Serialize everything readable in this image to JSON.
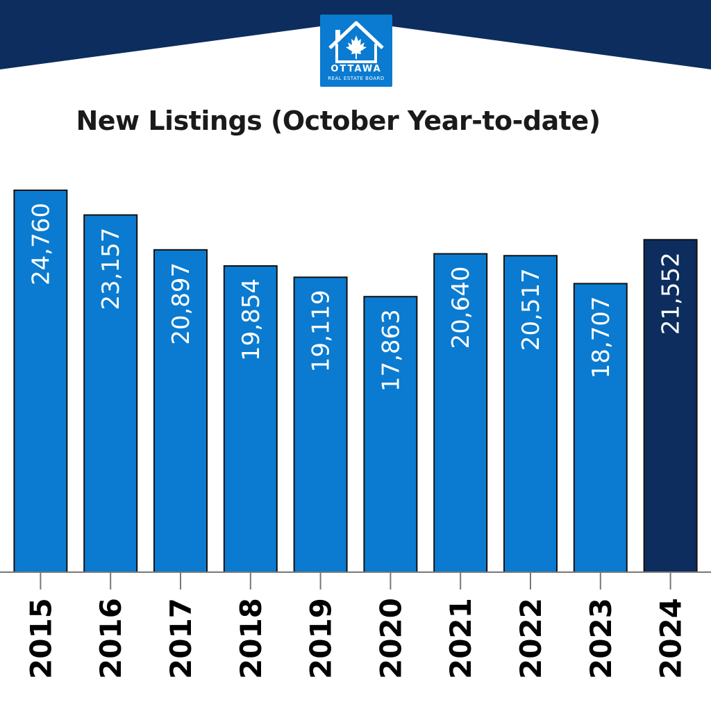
{
  "logo": {
    "name": "OTTAWA",
    "subtitle": "REAL ESTATE BOARD"
  },
  "colors": {
    "banner": "#0c2d5e",
    "bar": "#0a7bd0",
    "bar_highlight": "#0c2d5e",
    "bar_outline": "#111111",
    "value_label": "#ffffff",
    "axis": "#777777",
    "tick_label": "#000000",
    "logo_bg": "#0a7bd0"
  },
  "chart_data": {
    "type": "bar",
    "title": "New Listings (October Year-to-date)",
    "xlabel": "",
    "ylabel": "",
    "categories": [
      "2015",
      "2016",
      "2017",
      "2018",
      "2019",
      "2020",
      "2021",
      "2022",
      "2023",
      "2024"
    ],
    "values": [
      24760,
      23157,
      20897,
      19854,
      19119,
      17863,
      20640,
      20517,
      18707,
      21552
    ],
    "value_labels": [
      "24,760",
      "23,157",
      "20,897",
      "19,854",
      "19,119",
      "17,863",
      "20,640",
      "20,517",
      "18,707",
      "21,552"
    ],
    "highlight_category": "2024",
    "ylim": [
      0,
      24760
    ],
    "grid": false,
    "legend": "none"
  }
}
